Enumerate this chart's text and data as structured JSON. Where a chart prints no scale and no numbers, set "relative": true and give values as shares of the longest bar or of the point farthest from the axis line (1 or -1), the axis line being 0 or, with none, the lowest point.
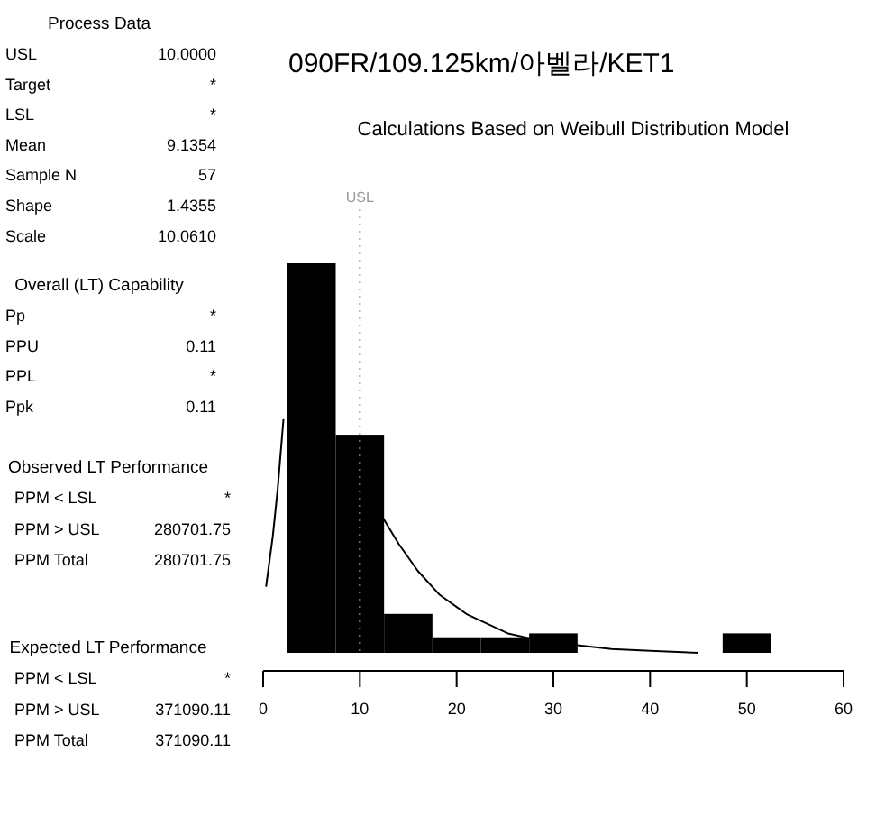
{
  "chart_data": {
    "type": "histogram",
    "title": "090FR/109.125km/아벨라/KET1",
    "subtitle": "Calculations Based on Weibull Distribution Model",
    "relative": true,
    "color": "#000000",
    "bins": [
      2.5,
      7.5,
      12.5,
      17.5,
      22.5,
      27.5,
      32.5,
      37.5,
      42.5,
      47.5,
      52.5
    ],
    "values": [
      1,
      0.56,
      0.1,
      0.04,
      0.04,
      0.05,
      0,
      0,
      0,
      0.05
    ],
    "series": [
      {
        "type": "line",
        "color": "#000000",
        "x": [
          0.3,
          1,
          1.5,
          2.1,
          null,
          12.3,
          14,
          16,
          18.2,
          21,
          25.3,
          28,
          32.3,
          36,
          40,
          45
        ],
        "values": [
          0.17,
          0.3,
          0.42,
          0.6,
          null,
          0.35,
          0.28,
          0.21,
          0.15,
          0.1,
          0.05,
          0.035,
          0.02,
          0.01,
          0.005,
          0
        ]
      }
    ],
    "xlim": [
      0,
      60
    ],
    "xticks": [
      0,
      10,
      20,
      30,
      40,
      50,
      60
    ],
    "ref_lines": [
      {
        "axis": "x",
        "value": 10,
        "label": "USL",
        "line_style": "dotted",
        "color": "#999999"
      }
    ],
    "annotations": [
      "Process Data",
      "USL",
      "10.0000",
      "Target",
      "*",
      "LSL",
      "*",
      "Mean",
      "9.1354",
      "Sample N",
      "57",
      "Shape",
      "1.4355",
      "Scale",
      "10.0610",
      "Overall (LT) Capability",
      "Pp",
      "*",
      "PPU",
      "0.11",
      "PPL",
      "*",
      "Ppk",
      "0.11",
      "Observed LT Performance",
      "PPM < LSL",
      "*",
      "PPM > USL",
      "280701.75",
      "PPM Total",
      "280701.75",
      "Expected LT Performance",
      "PPM < LSL",
      "*",
      "PPM > USL",
      "371090.11",
      "PPM Total",
      "371090.11"
    ]
  }
}
